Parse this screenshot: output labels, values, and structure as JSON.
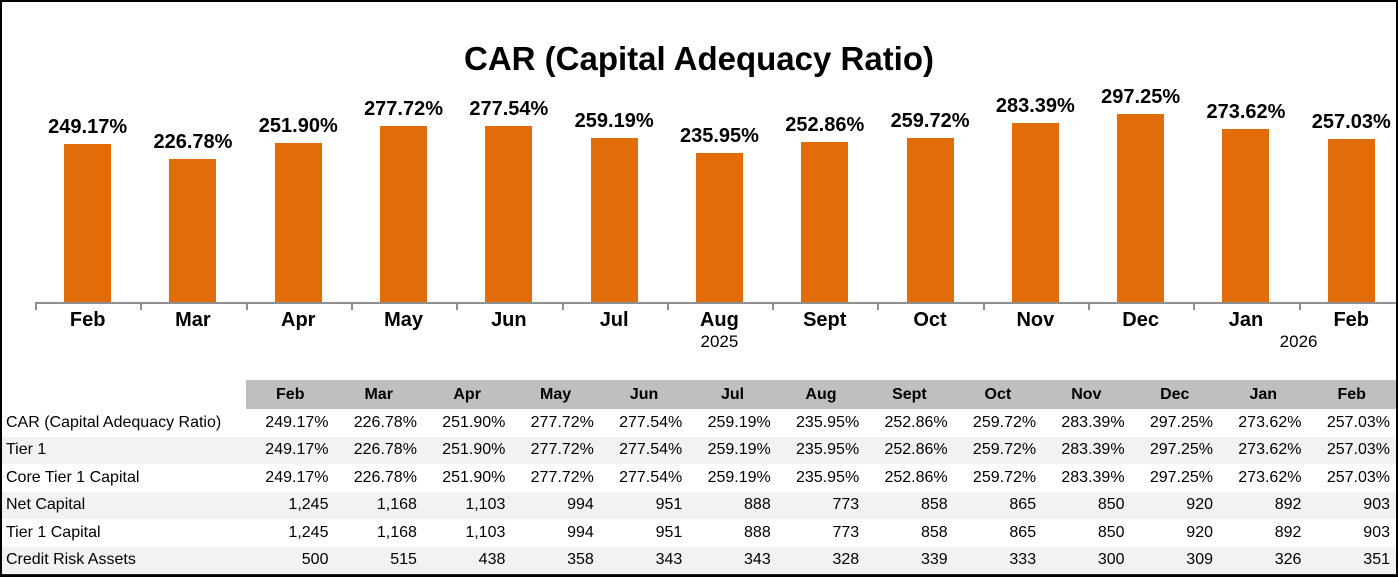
{
  "chart_data": {
    "type": "bar",
    "title": "CAR (Capital Adequacy Ratio)",
    "categories": [
      "Feb",
      "Mar",
      "Apr",
      "May",
      "Jun",
      "Jul",
      "Aug",
      "Sept",
      "Oct",
      "Nov",
      "Dec",
      "Jan",
      "Feb"
    ],
    "values": [
      249.17,
      226.78,
      251.9,
      277.72,
      277.54,
      259.19,
      235.95,
      252.86,
      259.72,
      283.39,
      297.25,
      273.62,
      257.03
    ],
    "data_labels": [
      "249.17%",
      "226.78%",
      "251.90%",
      "277.72%",
      "277.54%",
      "259.19%",
      "235.95%",
      "252.86%",
      "259.72%",
      "283.39%",
      "297.25%",
      "273.62%",
      "257.03%"
    ],
    "year_groups": [
      {
        "label": "2025",
        "anchor_index": 6.5
      },
      {
        "label": "2026",
        "anchor_index": 12
      }
    ],
    "y_axis_visible": false,
    "grid": false,
    "legend": false,
    "ylim": [
      0,
      300
    ],
    "bar_color": "#E36C0A",
    "axis_color": "#8F8F8F",
    "label_color": "#000000"
  },
  "table": {
    "columns": [
      "Feb",
      "Mar",
      "Apr",
      "May",
      "Jun",
      "Jul",
      "Aug",
      "Sept",
      "Oct",
      "Nov",
      "Dec",
      "Jan",
      "Feb"
    ],
    "rows": [
      {
        "label": "CAR (Capital Adequacy Ratio)",
        "values": [
          "249.17%",
          "226.78%",
          "251.90%",
          "277.72%",
          "277.54%",
          "259.19%",
          "235.95%",
          "252.86%",
          "259.72%",
          "283.39%",
          "297.25%",
          "273.62%",
          "257.03%"
        ]
      },
      {
        "label": "Tier 1",
        "values": [
          "249.17%",
          "226.78%",
          "251.90%",
          "277.72%",
          "277.54%",
          "259.19%",
          "235.95%",
          "252.86%",
          "259.72%",
          "283.39%",
          "297.25%",
          "273.62%",
          "257.03%"
        ]
      },
      {
        "label": "Core Tier 1 Capital",
        "values": [
          "249.17%",
          "226.78%",
          "251.90%",
          "277.72%",
          "277.54%",
          "259.19%",
          "235.95%",
          "252.86%",
          "259.72%",
          "283.39%",
          "297.25%",
          "273.62%",
          "257.03%"
        ]
      },
      {
        "label": "Net Capital",
        "values": [
          "1,245",
          "1,168",
          "1,103",
          "994",
          "951",
          "888",
          "773",
          "858",
          "865",
          "850",
          "920",
          "892",
          "903"
        ]
      },
      {
        "label": "Tier 1 Capital",
        "values": [
          "1,245",
          "1,168",
          "1,103",
          "994",
          "951",
          "888",
          "773",
          "858",
          "865",
          "850",
          "920",
          "892",
          "903"
        ]
      },
      {
        "label": "Credit Risk Assets",
        "values": [
          "500",
          "515",
          "438",
          "358",
          "343",
          "343",
          "328",
          "339",
          "333",
          "300",
          "309",
          "326",
          "351"
        ]
      }
    ],
    "header_bg": "#BFBFBF",
    "stripe_bg": "#F2F2F2",
    "bottom_border_color": "#1B2230"
  },
  "window": {
    "background": "#FFFFFF",
    "border_color": "#000000"
  }
}
